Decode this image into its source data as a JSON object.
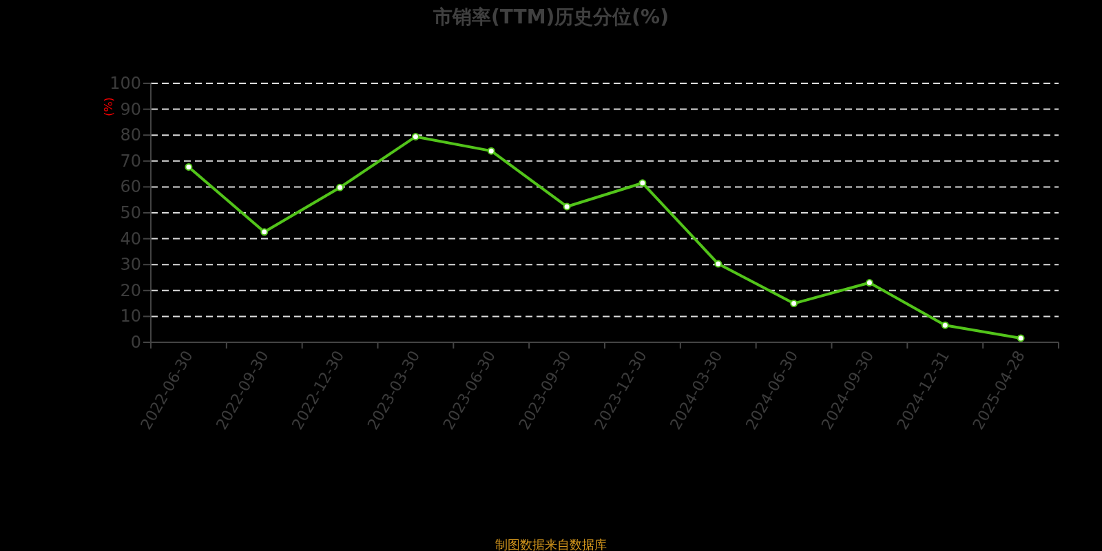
{
  "chart_data": {
    "type": "line",
    "title": "市销率(TTM)历史分位(%)",
    "ylabel": "(%)",
    "annotations": [
      "制图数据来自数据库"
    ],
    "categories": [
      "2022-06-30",
      "2022-09-30",
      "2022-12-30",
      "2023-03-30",
      "2023-06-30",
      "2023-09-30",
      "2023-12-30",
      "2024-03-30",
      "2024-06-30",
      "2024-09-30",
      "2024-12-31",
      "2025-04-28"
    ],
    "series": [
      {
        "color": "#52c41a",
        "values": [
          67.7,
          42.6,
          59.8,
          79.4,
          73.9,
          52.4,
          61.5,
          30.3,
          15.0,
          23.0,
          6.6,
          1.6
        ]
      }
    ],
    "ylim": [
      0,
      100
    ],
    "yticks": [
      0,
      10,
      20,
      30,
      40,
      50,
      60,
      70,
      80,
      90,
      100
    ],
    "grid": "y",
    "marker": "circle",
    "line_style": "solid"
  }
}
